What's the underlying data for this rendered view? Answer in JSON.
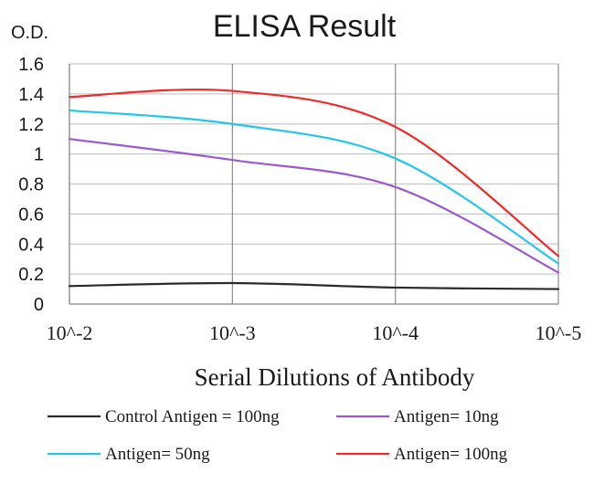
{
  "chart_data": {
    "type": "line",
    "title": "ELISA Result",
    "ylabel": "O.D.",
    "xlabel": "Serial Dilutions of Antibody",
    "categories": [
      "10^-2",
      "10^-3",
      "10^-4",
      "10^-5"
    ],
    "ylim": [
      0,
      1.6
    ],
    "yticks": [
      "0",
      "0.2",
      "0.4",
      "0.6",
      "0.8",
      "1",
      "1.2",
      "1.4",
      "1.6"
    ],
    "grid": true,
    "legend_position": "bottom",
    "series": [
      {
        "name": "Control Antigen = 100ng",
        "color": "#2b2b2b",
        "values": [
          0.12,
          0.14,
          0.11,
          0.1
        ]
      },
      {
        "name": "Antigen= 10ng",
        "color": "#9b59d0",
        "values": [
          1.1,
          0.96,
          0.78,
          0.21
        ]
      },
      {
        "name": "Antigen= 50ng",
        "color": "#26c6ea",
        "values": [
          1.29,
          1.2,
          0.97,
          0.27
        ]
      },
      {
        "name": "Antigen= 100ng",
        "color": "#ee2a2a",
        "values": [
          1.38,
          1.42,
          1.18,
          0.32
        ]
      }
    ]
  }
}
